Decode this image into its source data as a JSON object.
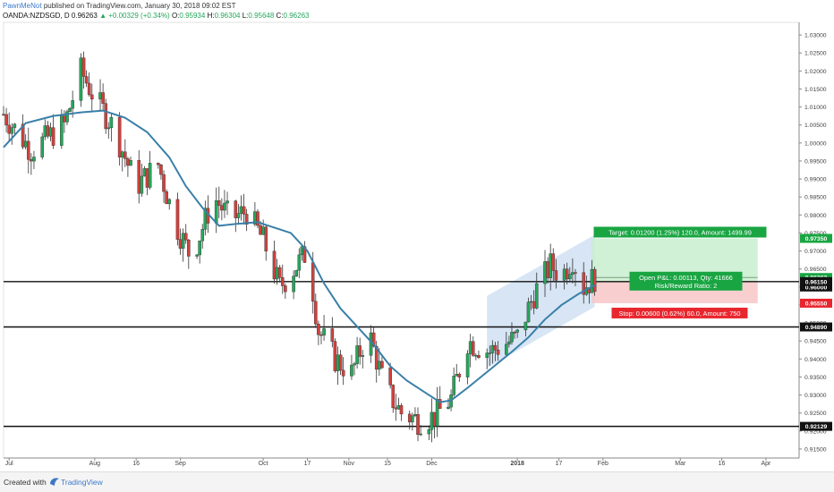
{
  "header": {
    "author": "PawnMeNot",
    "published_text": "published on TradingView.com, January 30, 2018 09:02 EST",
    "symbol_line": "OANDA:NZDSGD, D",
    "last_price": "0.96263",
    "change": "+0.00329 (+0.34%)",
    "o_label": "O:",
    "o_value": "0.95934",
    "h_label": "H:",
    "h_value": "0.96304",
    "l_label": "L:",
    "l_value": "0.95648",
    "c_label": "C:",
    "c_value": "0.96263"
  },
  "footer": {
    "created_with": "Created with",
    "brand": "TradingView"
  },
  "colors": {
    "bull": "#26a65b",
    "bear": "#d0413e",
    "ma": "#3a7fa8",
    "target_bg": "#c8efcf",
    "stop_bg": "#f7c6c6",
    "channel": "#c9dcf1",
    "target_label": "#19a542",
    "stop_label": "#e8262d"
  },
  "chart_data": {
    "type": "candlestick",
    "symbol": "OANDA:NZDSGD",
    "timeframe": "D",
    "ylim": [
      0.9125,
      1.0335
    ],
    "y_ticks": [
      0.915,
      0.92,
      0.925,
      0.93,
      0.935,
      0.94,
      0.945,
      0.95,
      0.955,
      0.96,
      0.965,
      0.97,
      0.975,
      0.98,
      0.985,
      0.99,
      0.995,
      1.0,
      1.005,
      1.01,
      1.015,
      1.02,
      1.025,
      1.03
    ],
    "x_labels": [
      {
        "label": "Jul",
        "day": 2
      },
      {
        "label": "Aug",
        "day": 33
      },
      {
        "label": "16",
        "day": 48
      },
      {
        "label": "Sep",
        "day": 64
      },
      {
        "label": "Oct",
        "day": 94
      },
      {
        "label": "17",
        "day": 110
      },
      {
        "label": "Nov",
        "day": 125
      },
      {
        "label": "15",
        "day": 139
      },
      {
        "label": "Dec",
        "day": 155
      },
      {
        "label": "2018",
        "day": 186
      },
      {
        "label": "17",
        "day": 201
      },
      {
        "label": "Feb",
        "day": 217
      },
      {
        "label": "Mar",
        "day": 245
      },
      {
        "label": "16",
        "day": 260
      },
      {
        "label": "Apr",
        "day": 276
      }
    ],
    "x_range_days": [
      0,
      288
    ],
    "close_path": [
      [
        0,
        1.008
      ],
      [
        10,
        0.998
      ],
      [
        22,
        1.005
      ],
      [
        28,
        1.02
      ],
      [
        32,
        1.014
      ],
      [
        40,
        1.004
      ],
      [
        48,
        0.988
      ],
      [
        56,
        0.994
      ],
      [
        62,
        0.978
      ],
      [
        68,
        0.968
      ],
      [
        76,
        0.985
      ],
      [
        82,
        0.979
      ],
      [
        88,
        0.981
      ],
      [
        94,
        0.973
      ],
      [
        100,
        0.96
      ],
      [
        106,
        0.966
      ],
      [
        110,
        0.97
      ],
      [
        114,
        0.948
      ],
      [
        120,
        0.94
      ],
      [
        126,
        0.936
      ],
      [
        132,
        0.948
      ],
      [
        138,
        0.932
      ],
      [
        144,
        0.925
      ],
      [
        150,
        0.923
      ],
      [
        156,
        0.924
      ],
      [
        162,
        0.929
      ],
      [
        168,
        0.945
      ],
      [
        176,
        0.942
      ],
      [
        186,
        0.946
      ],
      [
        192,
        0.958
      ],
      [
        198,
        0.966
      ],
      [
        202,
        0.963
      ],
      [
        206,
        0.968
      ],
      [
        210,
        0.96
      ],
      [
        214,
        0.9626
      ]
    ],
    "moving_average": [
      [
        0,
        0.9988
      ],
      [
        8,
        1.0055
      ],
      [
        18,
        1.0075
      ],
      [
        28,
        1.0085
      ],
      [
        36,
        1.009
      ],
      [
        44,
        1.007
      ],
      [
        52,
        1.003
      ],
      [
        60,
        0.996
      ],
      [
        66,
        0.988
      ],
      [
        72,
        0.982
      ],
      [
        78,
        0.977
      ],
      [
        84,
        0.9775
      ],
      [
        92,
        0.978
      ],
      [
        98,
        0.9765
      ],
      [
        104,
        0.975
      ],
      [
        110,
        0.97
      ],
      [
        116,
        0.961
      ],
      [
        122,
        0.954
      ],
      [
        128,
        0.949
      ],
      [
        134,
        0.944
      ],
      [
        140,
        0.938
      ],
      [
        146,
        0.934
      ],
      [
        152,
        0.931
      ],
      [
        158,
        0.928
      ],
      [
        162,
        0.9285
      ],
      [
        168,
        0.932
      ],
      [
        176,
        0.937
      ],
      [
        184,
        0.942
      ],
      [
        190,
        0.946
      ],
      [
        196,
        0.951
      ],
      [
        202,
        0.955
      ],
      [
        208,
        0.958
      ],
      [
        214,
        0.9605
      ]
    ],
    "horizontal_levels": [
      {
        "price": 0.9615,
        "label": "0.96150"
      },
      {
        "price": 0.9489,
        "label": "0.94890"
      },
      {
        "price": 0.92129,
        "label": "0.92129"
      }
    ],
    "price_markers": [
      {
        "price": 0.9735,
        "label": "0.97350",
        "color": "green"
      },
      {
        "price": 0.96263,
        "label": "0.96263",
        "color": "green"
      },
      {
        "price": 0.96,
        "label": "0.96000",
        "color": "black"
      },
      {
        "price": 0.9555,
        "label": "0.95550",
        "color": "red"
      }
    ],
    "channel": {
      "start_day": 175,
      "end_day": 214,
      "start_low": 0.9375,
      "start_high": 0.9575,
      "end_low": 0.9545,
      "end_high": 0.9745
    },
    "position": {
      "type": "long",
      "start_day": 213,
      "end_day": 273,
      "entry": 0.9615,
      "target": 0.9735,
      "stop": 0.9555,
      "target_text": "Target: 0.01200 (1.25%) 120.0, Amount: 1499.99",
      "pnl_text": "Open P&L: 0.00113, Qty: 41666",
      "rr_text": "Risk/Reward Ratio: 2",
      "stop_text": "Stop: 0.00600 (0.62%) 60.0, Amount: 750"
    }
  }
}
